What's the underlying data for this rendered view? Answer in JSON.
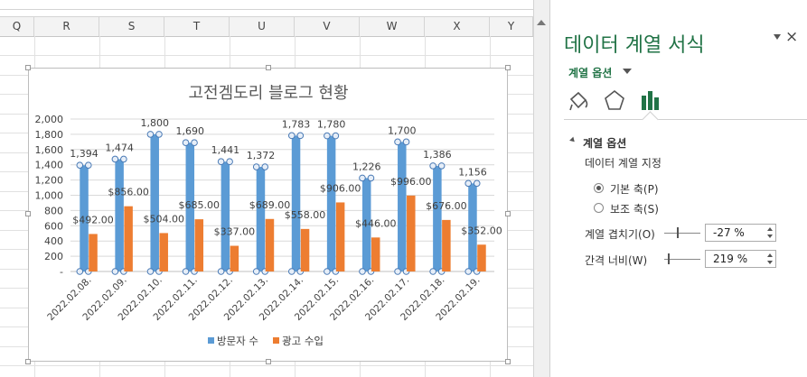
{
  "columns": [
    "Q",
    "R",
    "S",
    "T",
    "U",
    "V",
    "W",
    "X",
    "Y"
  ],
  "chart_data": {
    "type": "bar",
    "title": "고전겜도리 블로그 현황",
    "categories": [
      "2022.02.08.",
      "2022.02.09.",
      "2022.02.10.",
      "2022.02.11.",
      "2022.02.12.",
      "2022.02.13.",
      "2022.02.14.",
      "2022.02.15.",
      "2022.02.16.",
      "2022.02.17.",
      "2022.02.18.",
      "2022.02.19."
    ],
    "series": [
      {
        "name": "방문자 수",
        "values": [
          1394,
          1474,
          1800,
          1690,
          1441,
          1372,
          1783,
          1780,
          1226,
          1700,
          1386,
          1156
        ],
        "labels": [
          "1,394",
          "1,474",
          "1,800",
          "1,690",
          "1,441",
          "1,372",
          "1,783",
          "1,780",
          "1,226",
          "1,700",
          "1,386",
          "1,156"
        ],
        "color": "#5b9bd5"
      },
      {
        "name": "광고 수입",
        "values": [
          492,
          856,
          504,
          685,
          337,
          689,
          558,
          906,
          446,
          996,
          676,
          352
        ],
        "labels": [
          "$492.00",
          "$856.00",
          "$504.00",
          "$685.00",
          "$337.00",
          "$689.00",
          "$558.00",
          "$906.00",
          "$446.00",
          "$996.00",
          "$676.00",
          "$352.00"
        ],
        "color": "#ed7d31"
      }
    ],
    "y_ticks": [
      "-",
      "200",
      "400",
      "600",
      "800",
      "1,000",
      "1,200",
      "1,400",
      "1,600",
      "1,800",
      "2,000"
    ],
    "ylim": [
      0,
      2000
    ],
    "grid": true,
    "legend": "bottom"
  },
  "pane": {
    "title": "데이터 계열 서식",
    "close": "×",
    "series_options_dropdown": "계열 옵션",
    "section_header": "계열 옵션",
    "plot_series_on": "데이터 계열 지정",
    "primary_axis": "기본 축(P)",
    "secondary_axis": "보조 축(S)",
    "overlap_label": "계열 겹치기(O)",
    "overlap_value": "-27 %",
    "gap_label": "간격 너비(W)",
    "gap_value": "219 %"
  }
}
